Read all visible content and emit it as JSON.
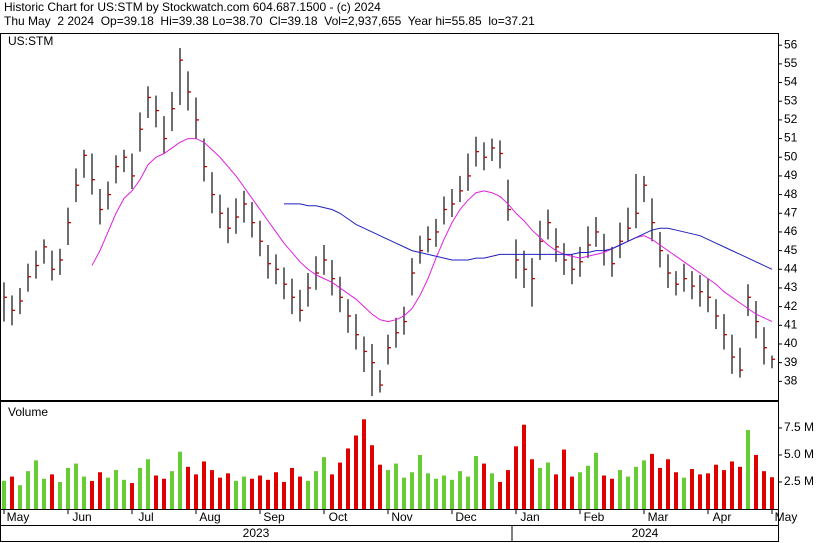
{
  "header": {
    "title": "Historic Chart for US:STM by Stockwatch.com 604.687.1500 - (c) 2024",
    "quote": "Thu May  2 2024  Op=39.18  Hi=39.38 Lo=38.70  Cl=39.18  Vol=2,937,655  Year hi=55.85  lo=37.21"
  },
  "years": [
    "2023",
    "2024"
  ],
  "chart_data": [
    {
      "type": "ohlc",
      "label": "US:STM",
      "bar_color": "#202020",
      "close_color": "#c00000",
      "ylim": [
        37,
        56.6
      ],
      "yticks": [
        38,
        39,
        40,
        41,
        42,
        43,
        44,
        45,
        46,
        47,
        48,
        49,
        50,
        51,
        52,
        53,
        54,
        55,
        56
      ],
      "close": [
        42.5,
        41.8,
        42.3,
        43.6,
        44.2,
        45.2,
        44.0,
        44.5,
        46.5,
        48.5,
        50.1,
        48.8,
        47.2,
        48.0,
        49.5,
        50.0,
        49.0,
        51.5,
        53.2,
        52.5,
        51.0,
        52.6,
        55.2,
        53.5,
        52.0,
        49.5,
        48.0,
        47.0,
        46.2,
        46.8,
        47.5,
        46.5,
        45.5,
        44.3,
        44.0,
        43.2,
        42.5,
        41.8,
        43.0,
        43.8,
        44.5,
        43.5,
        42.5,
        41.5,
        40.5,
        39.6,
        39.0,
        37.8,
        39.8,
        40.6,
        41.2,
        43.8,
        45.0,
        45.6,
        46.0,
        47.2,
        47.5,
        48.2,
        49.0,
        50.3,
        50.0,
        50.5,
        50.2,
        47.2,
        44.5,
        44.0,
        43.5,
        45.5,
        46.5,
        45.2,
        44.5,
        44.0,
        44.4,
        45.3,
        46.0,
        45.0,
        44.3,
        45.5,
        46.2,
        47.0,
        48.5,
        46.5,
        45.0,
        43.8,
        43.2,
        43.5,
        43.1,
        42.8,
        42.5,
        41.5,
        40.5,
        39.3,
        38.6,
        42.5,
        41.2,
        39.8,
        39.18
      ],
      "high": [
        43.3,
        42.6,
        43.0,
        44.3,
        45.0,
        45.6,
        45.0,
        45.1,
        47.3,
        49.4,
        50.4,
        50.2,
        48.3,
        48.7,
        50.1,
        50.4,
        50.2,
        52.4,
        53.8,
        53.3,
        52.2,
        53.5,
        55.85,
        54.6,
        53.2,
        51.0,
        49.2,
        48.0,
        47.3,
        47.8,
        48.2,
        47.6,
        46.6,
        45.3,
        44.8,
        44.1,
        43.5,
        42.9,
        43.8,
        44.7,
        45.3,
        44.5,
        43.6,
        42.4,
        41.6,
        40.4,
        40.0,
        38.6,
        40.5,
        41.4,
        42.0,
        44.6,
        45.8,
        46.3,
        46.7,
        47.9,
        48.3,
        49.0,
        50.2,
        51.1,
        50.8,
        51.0,
        50.9,
        48.8,
        45.6,
        45.0,
        44.6,
        46.6,
        47.2,
        46.2,
        45.4,
        44.8,
        45.2,
        46.3,
        46.8,
        45.9,
        45.2,
        46.5,
        47.3,
        49.1,
        49.0,
        47.8,
        46.0,
        44.8,
        43.9,
        44.3,
        43.9,
        43.7,
        43.5,
        42.4,
        41.6,
        40.5,
        39.8,
        43.2,
        42.3,
        40.9,
        39.38
      ],
      "low": [
        41.2,
        41.0,
        41.6,
        42.8,
        43.5,
        44.3,
        43.4,
        43.7,
        45.3,
        47.6,
        48.9,
        48.0,
        46.4,
        47.2,
        48.6,
        49.2,
        48.3,
        50.3,
        52.1,
        51.6,
        50.2,
        51.4,
        52.8,
        52.5,
        51.0,
        48.7,
        47.0,
        46.2,
        45.4,
        45.9,
        46.5,
        45.7,
        44.7,
        43.5,
        43.2,
        42.4,
        41.6,
        41.2,
        42.0,
        42.9,
        43.7,
        42.6,
        41.7,
        40.6,
        39.7,
        38.5,
        37.21,
        37.4,
        38.9,
        39.8,
        40.5,
        42.6,
        44.3,
        44.9,
        45.2,
        46.4,
        46.8,
        47.6,
        48.2,
        49.5,
        49.3,
        49.8,
        49.4,
        46.6,
        43.5,
        43.0,
        42.0,
        44.5,
        45.6,
        44.4,
        43.7,
        43.2,
        43.6,
        44.6,
        45.2,
        44.2,
        43.6,
        44.6,
        45.5,
        46.2,
        47.6,
        45.5,
        44.1,
        43.0,
        42.6,
        42.8,
        42.4,
        42.0,
        41.7,
        40.8,
        39.7,
        38.4,
        38.2,
        41.5,
        40.3,
        38.9,
        38.7
      ],
      "lines": [
        {
          "color": "#e020e0",
          "values": [
            null,
            null,
            null,
            null,
            null,
            null,
            null,
            null,
            null,
            null,
            null,
            44.2,
            45.0,
            46.0,
            47.0,
            47.8,
            48.2,
            48.8,
            49.6,
            50.0,
            50.2,
            50.5,
            50.8,
            51.0,
            51.0,
            50.8,
            50.4,
            50.0,
            49.5,
            49.0,
            48.4,
            47.8,
            47.2,
            46.6,
            46.0,
            45.4,
            44.9,
            44.4,
            44.0,
            43.7,
            43.5,
            43.3,
            43.0,
            42.7,
            42.4,
            42.0,
            41.6,
            41.3,
            41.2,
            41.3,
            41.5,
            41.9,
            42.6,
            43.5,
            44.6,
            45.6,
            46.5,
            47.2,
            47.7,
            48.1,
            48.2,
            48.1,
            47.9,
            47.5,
            47.0,
            46.6,
            46.1,
            45.7,
            45.3,
            45.0,
            44.8,
            44.7,
            44.6,
            44.7,
            44.8,
            44.9,
            45.1,
            45.3,
            45.5,
            45.7,
            45.8,
            45.6,
            45.3,
            45.0,
            44.7,
            44.4,
            44.1,
            43.8,
            43.5,
            43.2,
            42.8,
            42.5,
            42.2,
            41.9,
            41.6,
            41.4,
            41.2
          ]
        },
        {
          "color": "#2020c0",
          "values": [
            null,
            null,
            null,
            null,
            null,
            null,
            null,
            null,
            null,
            null,
            null,
            null,
            null,
            null,
            null,
            null,
            null,
            null,
            null,
            null,
            null,
            null,
            null,
            null,
            null,
            null,
            null,
            null,
            null,
            null,
            null,
            null,
            null,
            null,
            null,
            47.5,
            47.5,
            47.5,
            47.4,
            47.4,
            47.3,
            47.2,
            47.0,
            46.7,
            46.4,
            46.2,
            46.0,
            45.8,
            45.6,
            45.4,
            45.2,
            45.0,
            44.9,
            44.8,
            44.7,
            44.6,
            44.5,
            44.5,
            44.5,
            44.6,
            44.6,
            44.7,
            44.8,
            44.8,
            44.8,
            44.8,
            44.8,
            44.8,
            44.8,
            44.8,
            44.8,
            44.8,
            44.9,
            44.9,
            45.0,
            45.0,
            45.1,
            45.3,
            45.5,
            45.7,
            45.9,
            46.1,
            46.2,
            46.2,
            46.1,
            46.0,
            45.9,
            45.8,
            45.6,
            45.4,
            45.2,
            45.0,
            44.8,
            44.6,
            44.4,
            44.2,
            44.0
          ]
        }
      ]
    },
    {
      "type": "bar",
      "label": "Volume",
      "up_color": "#66cc33",
      "down_color": "#e00000",
      "ylim": [
        0,
        9.9
      ],
      "yticks": [
        {
          "value": 2.5,
          "label": "2.5 M"
        },
        {
          "value": 5.0,
          "label": "5.0 M"
        },
        {
          "value": 7.5,
          "label": "7.5 M"
        }
      ],
      "categories": [
        "May",
        null,
        null,
        null,
        null,
        null,
        null,
        null,
        "Jun",
        null,
        null,
        null,
        null,
        null,
        null,
        null,
        "Jul",
        null,
        null,
        null,
        null,
        null,
        null,
        null,
        "Aug",
        null,
        null,
        null,
        null,
        null,
        null,
        null,
        "Sep",
        null,
        null,
        null,
        null,
        null,
        null,
        null,
        "Oct",
        null,
        null,
        null,
        null,
        null,
        null,
        null,
        "Nov",
        null,
        null,
        null,
        null,
        null,
        null,
        null,
        "Dec",
        null,
        null,
        null,
        null,
        null,
        null,
        null,
        "Jan",
        null,
        null,
        null,
        null,
        null,
        null,
        null,
        "Feb",
        null,
        null,
        null,
        null,
        null,
        null,
        null,
        "Mar",
        null,
        null,
        null,
        null,
        null,
        null,
        null,
        "Apr",
        null,
        null,
        null,
        null,
        null,
        null,
        null,
        "May"
      ],
      "values": [
        2.6,
        3.0,
        2.2,
        3.5,
        4.5,
        2.8,
        3.2,
        2.5,
        3.8,
        4.2,
        3.0,
        2.6,
        3.4,
        2.9,
        3.6,
        2.7,
        2.4,
        3.8,
        4.6,
        3.1,
        2.8,
        3.5,
        5.3,
        3.9,
        3.2,
        4.4,
        3.6,
        2.9,
        3.3,
        2.6,
        3.0,
        2.8,
        3.1,
        2.7,
        3.4,
        2.5,
        3.8,
        3.0,
        2.6,
        3.5,
        4.8,
        3.2,
        4.3,
        5.6,
        6.8,
        8.3,
        5.9,
        4.1,
        3.6,
        4.2,
        2.9,
        3.4,
        5.0,
        3.3,
        2.8,
        3.1,
        2.7,
        3.5,
        3.0,
        4.9,
        4.2,
        3.3,
        2.5,
        3.6,
        5.8,
        7.8,
        4.6,
        3.8,
        4.3,
        3.2,
        5.5,
        3.0,
        3.4,
        4.0,
        5.2,
        3.1,
        2.8,
        3.6,
        3.0,
        3.9,
        4.5,
        5.1,
        3.8,
        4.6,
        3.4,
        2.9,
        3.7,
        3.2,
        3.3,
        4.1,
        3.6,
        4.4,
        3.9,
        7.3,
        5.0,
        3.5,
        2.94
      ]
    }
  ]
}
